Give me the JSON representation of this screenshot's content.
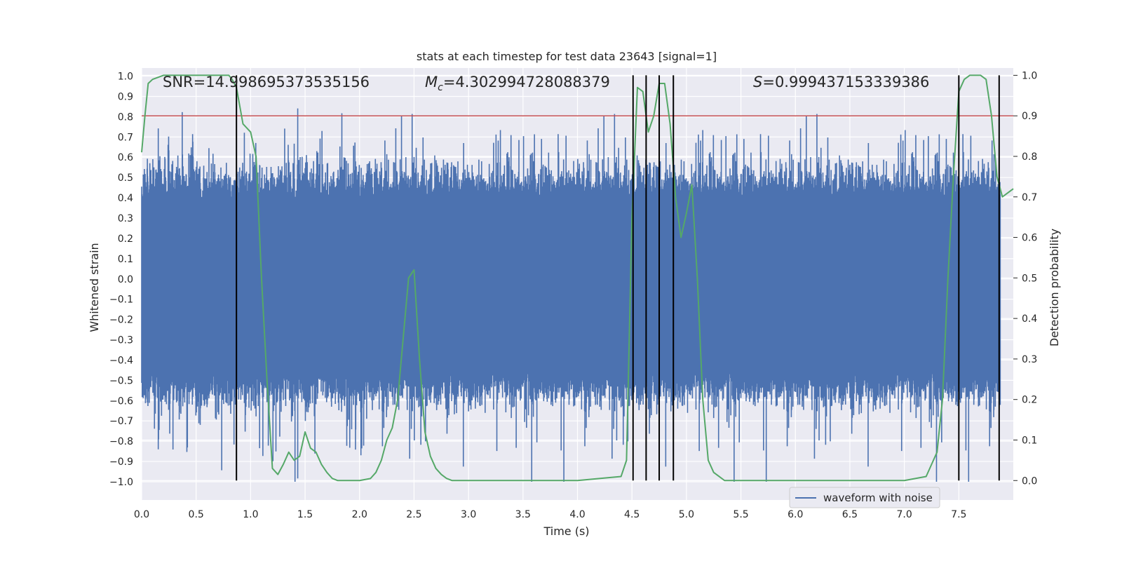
{
  "chart_data": {
    "type": "line",
    "title": "stats at each timestep for test data 23643 [signal=1]",
    "xlabel": "Time (s)",
    "ylabel_left": "Whitened strain",
    "ylabel_right": "Detection probability",
    "xlim": [
      0.0,
      8.0
    ],
    "ylim_left": [
      -1.09,
      1.04
    ],
    "ylim_right": [
      -0.048,
      1.018
    ],
    "x_ticks": [
      "0.0",
      "0.5",
      "1.0",
      "1.5",
      "2.0",
      "2.5",
      "3.0",
      "3.5",
      "4.0",
      "4.5",
      "5.0",
      "5.5",
      "6.0",
      "6.5",
      "7.0",
      "7.5"
    ],
    "y_left_ticks": [
      "1.0",
      "0.9",
      "0.8",
      "0.7",
      "0.6",
      "0.5",
      "0.4",
      "0.3",
      "0.2",
      "0.1",
      "0.0",
      "-0.1",
      "-0.2",
      "-0.3",
      "-0.4",
      "-0.5",
      "-0.6",
      "-0.7",
      "-0.8",
      "-0.9",
      "-1.0"
    ],
    "y_right_ticks": [
      "1.0",
      "0.9",
      "0.8",
      "0.7",
      "0.6",
      "0.5",
      "0.4",
      "0.3",
      "0.2",
      "0.1",
      "0.0"
    ],
    "grid": true,
    "legend_position": "bottom-right",
    "annotations": {
      "snr": "SNR=14.998695373535156",
      "mc": "=4.302994728088379",
      "s": "=0.999437153339386"
    },
    "series": [
      {
        "name": "waveform with noise",
        "axis": "left",
        "color": "#4c72b0",
        "envelope": {
          "band_low": -0.45,
          "band_high": 0.38,
          "peak_min": -1.0,
          "peak_max": 0.95,
          "samples_per_second": 2048
        }
      },
      {
        "axis": "right",
        "color": "#55a868",
        "x": [
          0.0,
          0.03,
          0.06,
          0.1,
          0.2,
          0.4,
          0.6,
          0.8,
          0.83,
          0.87,
          0.93,
          1.0,
          1.05,
          1.1,
          1.15,
          1.2,
          1.25,
          1.3,
          1.35,
          1.4,
          1.45,
          1.5,
          1.55,
          1.6,
          1.65,
          1.7,
          1.75,
          1.8,
          1.85,
          1.9,
          2.0,
          2.1,
          2.15,
          2.2,
          2.25,
          2.3,
          2.35,
          2.4,
          2.45,
          2.5,
          2.55,
          2.6,
          2.65,
          2.7,
          2.75,
          2.8,
          2.85,
          2.9,
          3.0,
          3.5,
          4.0,
          4.2,
          4.4,
          4.45,
          4.5,
          4.55,
          4.6,
          4.65,
          4.7,
          4.75,
          4.8,
          4.85,
          4.9,
          4.95,
          5.0,
          5.05,
          5.1,
          5.15,
          5.2,
          5.25,
          5.3,
          5.35,
          5.4,
          5.45,
          5.5,
          6.0,
          6.5,
          7.0,
          7.2,
          7.25,
          7.3,
          7.35,
          7.4,
          7.45,
          7.5,
          7.55,
          7.6,
          7.65,
          7.7,
          7.75,
          7.8,
          7.85,
          7.9,
          7.95,
          8.0
        ],
        "values": [
          0.81,
          0.9,
          0.98,
          0.99,
          1.0,
          1.0,
          1.0,
          1.0,
          0.99,
          0.97,
          0.88,
          0.86,
          0.8,
          0.5,
          0.25,
          0.03,
          0.015,
          0.04,
          0.07,
          0.05,
          0.06,
          0.12,
          0.08,
          0.07,
          0.04,
          0.02,
          0.005,
          0.0,
          0.0,
          0.0,
          0.0,
          0.005,
          0.02,
          0.05,
          0.1,
          0.13,
          0.2,
          0.35,
          0.5,
          0.52,
          0.3,
          0.12,
          0.06,
          0.03,
          0.015,
          0.005,
          0.0,
          0.0,
          0.0,
          0.0,
          0.0,
          0.005,
          0.01,
          0.05,
          0.65,
          0.97,
          0.96,
          0.86,
          0.9,
          0.98,
          0.98,
          0.88,
          0.7,
          0.6,
          0.66,
          0.73,
          0.5,
          0.2,
          0.05,
          0.02,
          0.01,
          0.0,
          0.0,
          0.0,
          0.0,
          0.0,
          0.0,
          0.0,
          0.01,
          0.04,
          0.07,
          0.2,
          0.5,
          0.75,
          0.96,
          0.99,
          1.0,
          1.0,
          1.0,
          0.99,
          0.9,
          0.75,
          0.7,
          0.71,
          0.72
        ]
      }
    ],
    "threshold_line": {
      "value": 0.9,
      "axis": "right",
      "color": "#c44e52"
    },
    "vertical_lines_x": [
      0.87,
      4.51,
      4.63,
      4.75,
      4.88,
      7.5,
      7.87
    ],
    "vertical_lines_range_right": [
      0.0,
      1.0
    ]
  },
  "colors": {
    "plot_bg": "#eaeaf2",
    "grid": "#ffffff",
    "text": "#262626"
  }
}
